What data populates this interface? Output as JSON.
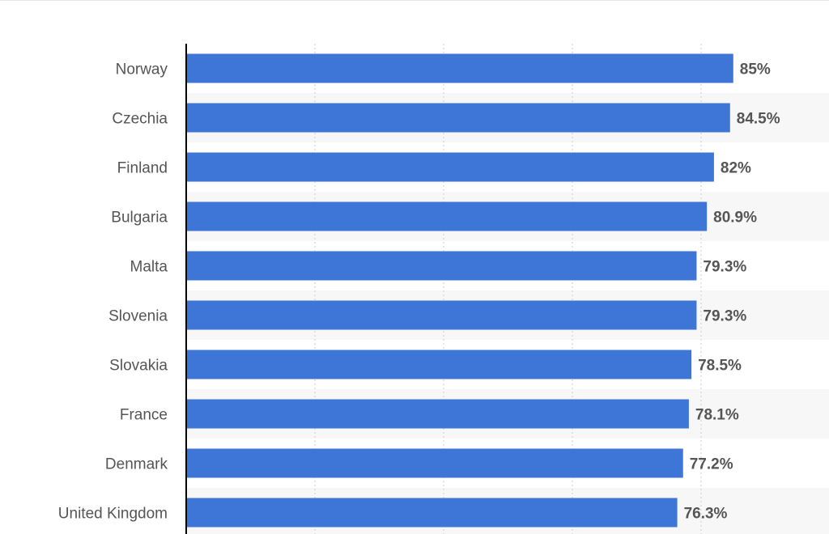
{
  "chart_data": {
    "type": "bar",
    "orientation": "horizontal",
    "categories": [
      "Norway",
      "Czechia",
      "Finland",
      "Bulgaria",
      "Malta",
      "Slovenia",
      "Slovakia",
      "France",
      "Denmark",
      "United Kingdom"
    ],
    "values": [
      85,
      84.5,
      82,
      80.9,
      79.3,
      79.3,
      78.5,
      78.1,
      77.2,
      76.3
    ],
    "value_labels": [
      "85%",
      "84.5%",
      "82%",
      "80.9%",
      "79.3%",
      "79.3%",
      "78.5%",
      "78.1%",
      "77.2%",
      "76.3%"
    ],
    "xlim": [
      0,
      100
    ],
    "grid": true,
    "colors": {
      "bar": "#3d76d6",
      "gridline": "#cccccc",
      "axis": "#000000",
      "row_band": "#f7f7f7",
      "label": "#555555"
    }
  }
}
